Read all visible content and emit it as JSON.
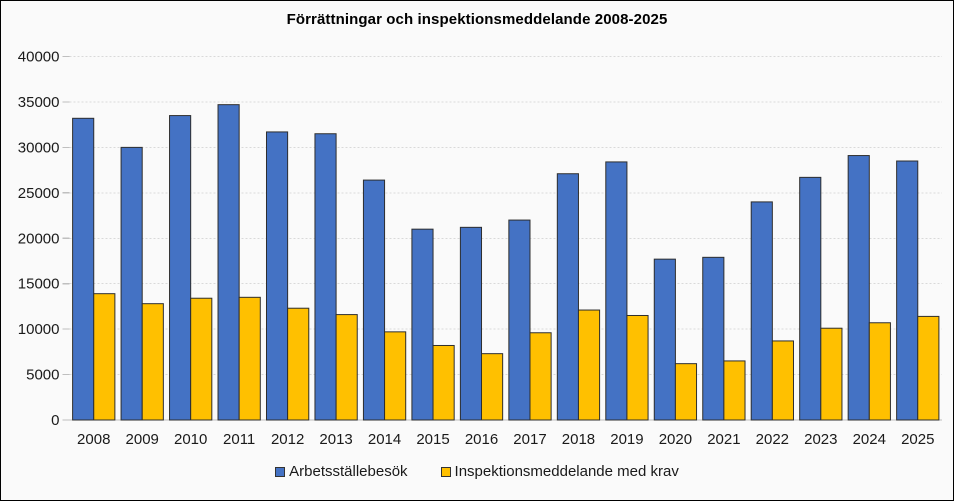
{
  "window": {
    "background": "#FAFAFA",
    "border_color": "#000000"
  },
  "chart_data": {
    "type": "bar",
    "title": "Förrättningar och inspektionsmeddelande 2008-2025",
    "categories": [
      "2008",
      "2009",
      "2010",
      "2011",
      "2012",
      "2013",
      "2014",
      "2015",
      "2016",
      "2017",
      "2018",
      "2019",
      "2020",
      "2021",
      "2022",
      "2023",
      "2024",
      "2025"
    ],
    "series": [
      {
        "name": "Arbetsställebesök",
        "color": "#4472C4",
        "values": [
          33200,
          30000,
          33500,
          34700,
          31700,
          31500,
          26400,
          21000,
          21200,
          22000,
          27100,
          28400,
          17700,
          17900,
          24000,
          26700,
          29100,
          28500
        ]
      },
      {
        "name": "Inspektionsmeddelande med krav",
        "color": "#FFC000",
        "values": [
          13900,
          12800,
          13400,
          13500,
          12300,
          11600,
          9700,
          8200,
          7300,
          9600,
          12100,
          11500,
          6200,
          6500,
          8700,
          10100,
          10700,
          11400
        ]
      }
    ],
    "xlabel": "",
    "ylabel": "",
    "ylim": [
      0,
      40000
    ],
    "ytick_step": 5000,
    "yticks": [
      "0",
      "5000",
      "10000",
      "15000",
      "20000",
      "25000",
      "30000",
      "35000",
      "40000"
    ],
    "grid": "horizontal-dashed",
    "gridline_color": "#D9D9D9",
    "axis_color": "#BFBFBF",
    "bar_outline_color": "#2e2e2e",
    "legend_position": "bottom"
  }
}
